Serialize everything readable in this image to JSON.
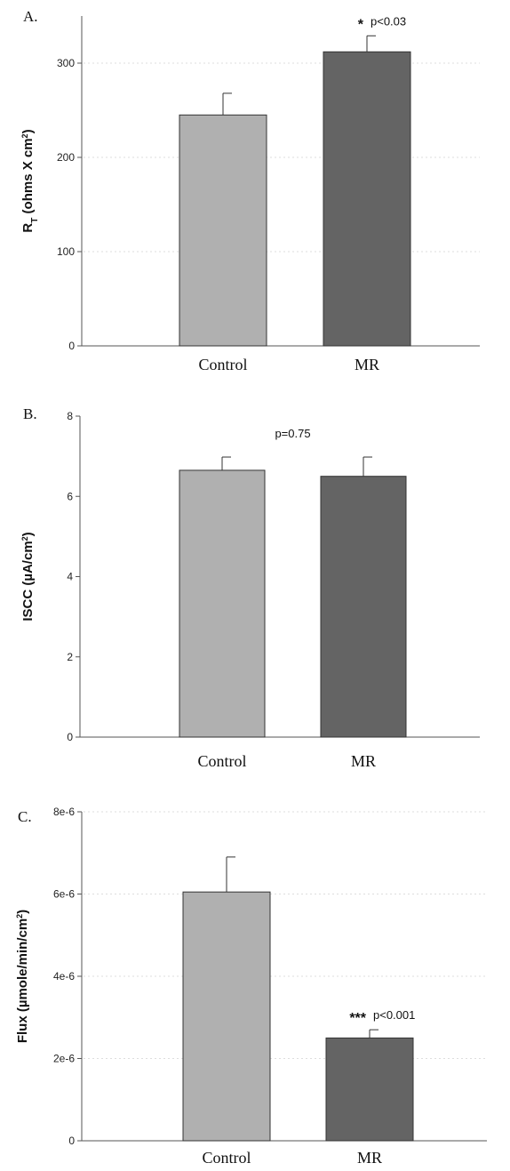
{
  "chart_data": [
    {
      "type": "bar",
      "panel_label": "A.",
      "categories": [
        "Control",
        "MR"
      ],
      "values": [
        245,
        312
      ],
      "errors": [
        23,
        17
      ],
      "ylabel": "R",
      "ylabel_sub": "T",
      "ylabel_tail": " (ohms X cm",
      "ylabel_sup": "2",
      "ylabel_end": ")",
      "ylim": [
        0,
        350
      ],
      "yticks": [
        0,
        100,
        200,
        300
      ],
      "ytick_labels": [
        "0",
        "100",
        "200",
        "300"
      ],
      "annotation": {
        "category_index": 1,
        "stars": "*",
        "text": "p<0.03"
      },
      "gridlines": true,
      "colors": [
        "#b0b0b0",
        "#646464"
      ]
    },
    {
      "type": "bar",
      "panel_label": "B.",
      "categories": [
        "Control",
        "MR"
      ],
      "values": [
        6.65,
        6.5
      ],
      "errors": [
        0.33,
        0.48
      ],
      "ylabel": "ISCC (µA/cm",
      "ylabel_sup": "2",
      "ylabel_end": ")",
      "ylim": [
        0,
        8
      ],
      "yticks": [
        0,
        2,
        4,
        6,
        8
      ],
      "ytick_labels": [
        "0",
        "2",
        "4",
        "6",
        "8"
      ],
      "annotation": {
        "text": "p=0.75"
      },
      "gridlines": false,
      "colors": [
        "#b0b0b0",
        "#646464"
      ]
    },
    {
      "type": "bar",
      "panel_label": "C.",
      "categories": [
        "Control",
        "MR"
      ],
      "values": [
        6.05e-06,
        2.5e-06
      ],
      "errors": [
        8.5e-07,
        2e-07
      ],
      "ylabel": "Flux (µmole/min/cm",
      "ylabel_sup": "2",
      "ylabel_end": ")",
      "ylim": [
        0,
        8e-06
      ],
      "yticks": [
        0,
        2e-06,
        4e-06,
        6e-06,
        8e-06
      ],
      "ytick_labels": [
        "0",
        "2e-6",
        "4e-6",
        "6e-6",
        "8e-6"
      ],
      "annotation": {
        "category_index": 1,
        "stars": "***",
        "text": "p<0.001"
      },
      "gridlines": true,
      "colors": [
        "#b0b0b0",
        "#646464"
      ]
    }
  ]
}
